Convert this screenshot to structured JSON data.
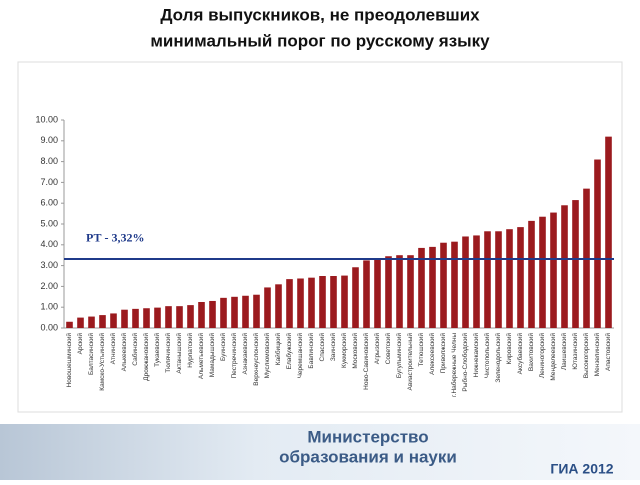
{
  "chart_data": {
    "type": "bar",
    "title": "Доля выпускников, не преодолевших минимальный порог  по русскому языку",
    "categories": [
      "Новошешминский",
      "Арский",
      "Балтасинский",
      "Камско-Устьинский",
      "Атнинский",
      "Алькеевский",
      "Сабинский",
      "Дрожжановский",
      "Тукаевский",
      "Тюлячинский",
      "Актанышский",
      "Нурлатский",
      "Альметьевский",
      "Мамадышский",
      "Буинский",
      "Пестречинский",
      "Азнакаевский",
      "Верхнеуслонский",
      "Муслюмовский",
      "Кайбицкий",
      "Елабужский",
      "Черемшанский",
      "Бавлинский",
      "Спасский",
      "Заинский",
      "Кукморский",
      "Московский",
      "Ново-Савиновский",
      "Агрызский",
      "Советский",
      "Бугульминский",
      "Авиастроительный",
      "Тетюшский",
      "Алексеевский",
      "Приволжский",
      "г.Набережные Челны",
      "Рыбно-Слободский",
      "Нижнекамский",
      "Чистопольский",
      "Зеленодольский",
      "Кировский",
      "Аксубаевский",
      "Вахитовский",
      "Лениногорский",
      "Менделеевский",
      "Лаишевский",
      "Ютазинский",
      "Высокогорский",
      "Мензелинский",
      "Апастовский"
    ],
    "values": [
      0.3,
      0.5,
      0.55,
      0.62,
      0.7,
      0.88,
      0.92,
      0.95,
      0.98,
      1.05,
      1.05,
      1.1,
      1.25,
      1.3,
      1.45,
      1.5,
      1.55,
      1.6,
      1.95,
      2.1,
      2.35,
      2.38,
      2.42,
      2.5,
      2.5,
      2.52,
      2.92,
      3.25,
      3.3,
      3.45,
      3.5,
      3.5,
      3.85,
      3.9,
      4.1,
      4.15,
      4.4,
      4.45,
      4.65,
      4.65,
      4.75,
      4.85,
      5.15,
      5.35,
      5.55,
      5.9,
      6.15,
      6.7,
      8.1,
      9.2
    ],
    "color": "#9b1a1e",
    "ylim": [
      0,
      10
    ],
    "yticks": [
      {
        "value": 0,
        "label": "0.00"
      },
      {
        "value": 1,
        "label": "1.00"
      },
      {
        "value": 2,
        "label": "2.00"
      },
      {
        "value": 3,
        "label": "3.00"
      },
      {
        "value": 4,
        "label": "4.00"
      },
      {
        "value": 5,
        "label": "5.00"
      },
      {
        "value": 6,
        "label": "6.00"
      },
      {
        "value": 7,
        "label": "7.00"
      },
      {
        "value": 8,
        "label": "8.00"
      },
      {
        "value": 9,
        "label": "9.00"
      },
      {
        "value": 10,
        "label": "10.00"
      }
    ],
    "reference_line": {
      "value": 3.32,
      "label": "РТ - 3,32%",
      "color": "#1f3a8a"
    }
  },
  "footer": {
    "ministry_line1": "Министерство",
    "ministry_line2": "образования и науки",
    "logo": "ГИА 2012"
  }
}
